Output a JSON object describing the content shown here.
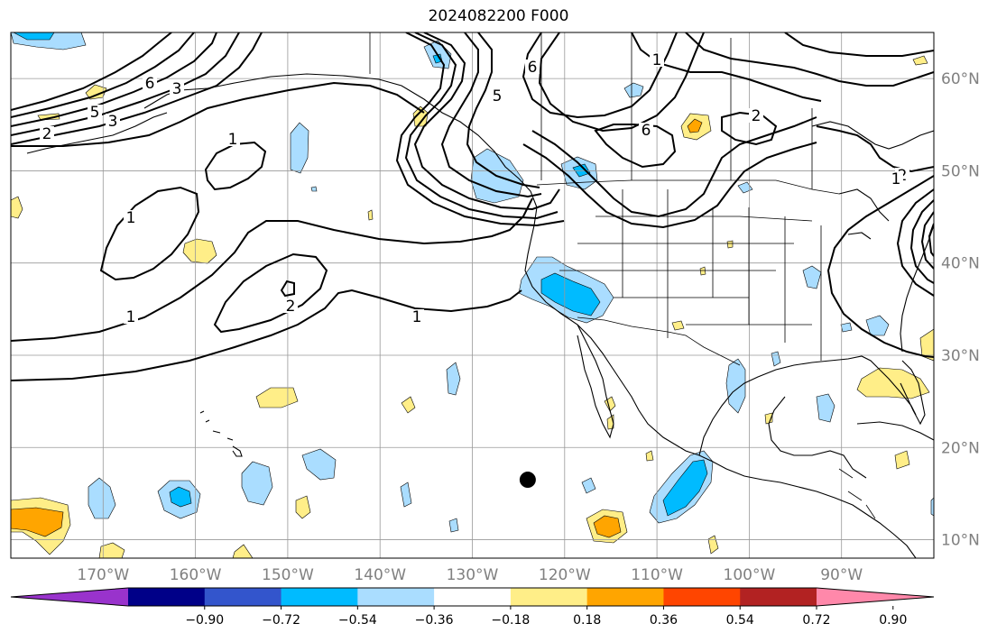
{
  "map": {
    "title": "2024082200 F000",
    "projection": "PlateCarree",
    "extent": {
      "lon_min": -180,
      "lon_max": -80,
      "lat_min": 8,
      "lat_max": 65
    },
    "lat_ticks": [
      {
        "value": 10,
        "label": "10°N"
      },
      {
        "value": 20,
        "label": "20°N"
      },
      {
        "value": 30,
        "label": "30°N"
      },
      {
        "value": 40,
        "label": "40°N"
      },
      {
        "value": 50,
        "label": "50°N"
      },
      {
        "value": 60,
        "label": "60°N"
      }
    ],
    "lon_ticks": [
      {
        "value": -170,
        "label": "170°W"
      },
      {
        "value": -160,
        "label": "160°W"
      },
      {
        "value": -150,
        "label": "150°W"
      },
      {
        "value": -140,
        "label": "140°W"
      },
      {
        "value": -130,
        "label": "130°W"
      },
      {
        "value": -120,
        "label": "120°W"
      },
      {
        "value": -110,
        "label": "110°W"
      },
      {
        "value": -100,
        "label": "100°W"
      },
      {
        "value": -90,
        "label": "90°W"
      }
    ],
    "grid": true,
    "marker": {
      "lon": -124,
      "lat": 16.5,
      "symbol": "filled-circle",
      "color": "#000000"
    },
    "contour_labels": [
      "1",
      "1",
      "1",
      "1",
      "2",
      "2",
      "3",
      "5",
      "5",
      "6",
      "6",
      "2",
      "2",
      "6",
      "1",
      "3",
      "1"
    ]
  },
  "colorbar": {
    "orientation": "horizontal",
    "extend": "both",
    "colors": [
      "#9933cc",
      "#000088",
      "#3355cc",
      "#00bbff",
      "#aaddff",
      "#ffffff",
      "#ffee88",
      "#ffa500",
      "#ff4500",
      "#b22222",
      "#ff88aa"
    ],
    "tick_labels": [
      "−0.90",
      "−0.72",
      "−0.54",
      "−0.36",
      "−0.18",
      "0.18",
      "0.36",
      "0.54",
      "0.72",
      "0.90"
    ]
  }
}
